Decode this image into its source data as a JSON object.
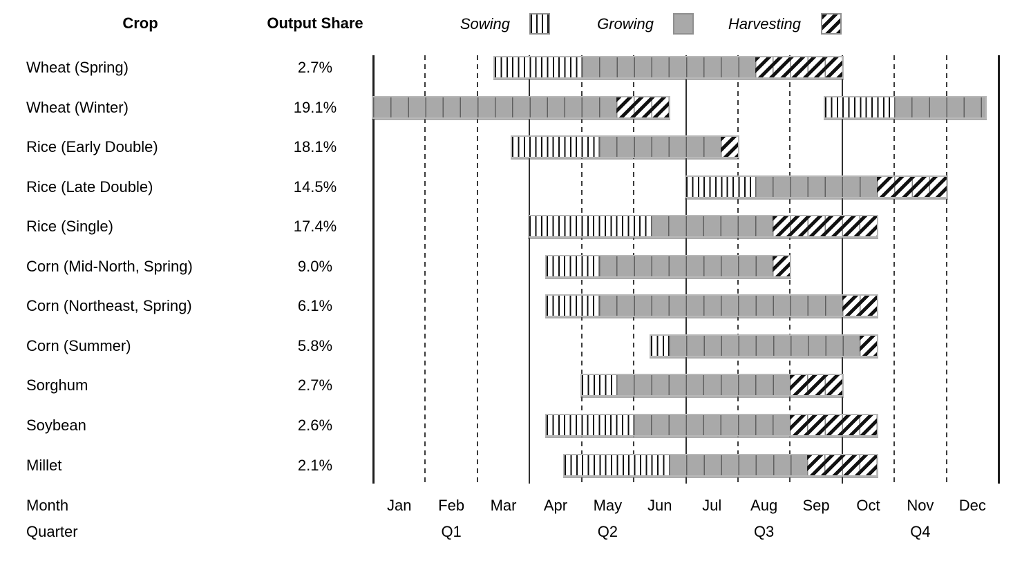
{
  "header": {
    "crop_col": "Crop",
    "share_col": "Output Share"
  },
  "legend": [
    {
      "phase": "sowing",
      "label": "Sowing"
    },
    {
      "phase": "growing",
      "label": "Growing"
    },
    {
      "phase": "harvesting",
      "label": "Harvesting"
    }
  ],
  "axis": {
    "month_title": "Month",
    "quarter_title": "Quarter"
  },
  "colors": {
    "growing_fill": "#a9a9a9",
    "pattern_ink": "#111111",
    "grid_line": "#2f2f2f",
    "bar_border": "#b8b8b8"
  },
  "chart_data": {
    "type": "gantt",
    "time_unit": "month index (0 = start of January, 12 = end of December)",
    "months": [
      "Jan",
      "Feb",
      "Mar",
      "Apr",
      "May",
      "Jun",
      "Jul",
      "Aug",
      "Sep",
      "Oct",
      "Nov",
      "Dec"
    ],
    "quarters": [
      "Q1",
      "Q2",
      "Q3",
      "Q4"
    ],
    "grid": {
      "solid_lines_at_months": [
        0,
        3,
        6,
        9,
        12
      ],
      "dashed_lines_at_months": [
        1,
        2,
        4,
        5,
        7,
        8,
        10,
        11
      ]
    },
    "phases": [
      "sowing",
      "growing",
      "harvesting"
    ],
    "rows": [
      {
        "crop": "Wheat (Spring)",
        "output_share": "2.7%",
        "segments": [
          {
            "phase": "sowing",
            "start": 2.33,
            "end": 4.0
          },
          {
            "phase": "growing",
            "start": 4.0,
            "end": 7.33
          },
          {
            "phase": "harvesting",
            "start": 7.33,
            "end": 9.0
          }
        ]
      },
      {
        "crop": "Wheat (Winter)",
        "output_share": "19.1%",
        "segments": [
          {
            "phase": "growing",
            "start": 0.0,
            "end": 4.67
          },
          {
            "phase": "harvesting",
            "start": 4.67,
            "end": 5.67
          },
          {
            "phase": "sowing",
            "start": 8.67,
            "end": 10.0
          },
          {
            "phase": "growing",
            "start": 10.0,
            "end": 11.75
          }
        ]
      },
      {
        "crop": "Rice (Early Double)",
        "output_share": "18.1%",
        "segments": [
          {
            "phase": "sowing",
            "start": 2.67,
            "end": 4.33
          },
          {
            "phase": "growing",
            "start": 4.33,
            "end": 6.67
          },
          {
            "phase": "harvesting",
            "start": 6.67,
            "end": 7.0
          }
        ]
      },
      {
        "crop": "Rice (Late Double)",
        "output_share": "14.5%",
        "segments": [
          {
            "phase": "sowing",
            "start": 6.0,
            "end": 7.33
          },
          {
            "phase": "growing",
            "start": 7.33,
            "end": 9.67
          },
          {
            "phase": "harvesting",
            "start": 9.67,
            "end": 11.0
          }
        ]
      },
      {
        "crop": "Rice (Single)",
        "output_share": "17.4%",
        "segments": [
          {
            "phase": "sowing",
            "start": 3.0,
            "end": 5.33
          },
          {
            "phase": "growing",
            "start": 5.33,
            "end": 7.67
          },
          {
            "phase": "harvesting",
            "start": 7.67,
            "end": 9.67
          }
        ]
      },
      {
        "crop": "Corn (Mid-North, Spring)",
        "output_share": "9.0%",
        "segments": [
          {
            "phase": "sowing",
            "start": 3.33,
            "end": 4.33
          },
          {
            "phase": "growing",
            "start": 4.33,
            "end": 7.67
          },
          {
            "phase": "harvesting",
            "start": 7.67,
            "end": 8.0
          }
        ]
      },
      {
        "crop": "Corn (Northeast, Spring)",
        "output_share": "6.1%",
        "segments": [
          {
            "phase": "sowing",
            "start": 3.33,
            "end": 4.33
          },
          {
            "phase": "growing",
            "start": 4.33,
            "end": 9.0
          },
          {
            "phase": "harvesting",
            "start": 9.0,
            "end": 9.67
          }
        ]
      },
      {
        "crop": "Corn (Summer)",
        "output_share": "5.8%",
        "segments": [
          {
            "phase": "sowing",
            "start": 5.33,
            "end": 5.67
          },
          {
            "phase": "growing",
            "start": 5.67,
            "end": 9.33
          },
          {
            "phase": "harvesting",
            "start": 9.33,
            "end": 9.67
          }
        ]
      },
      {
        "crop": "Sorghum",
        "output_share": "2.7%",
        "segments": [
          {
            "phase": "sowing",
            "start": 4.0,
            "end": 4.67
          },
          {
            "phase": "growing",
            "start": 4.67,
            "end": 8.0
          },
          {
            "phase": "harvesting",
            "start": 8.0,
            "end": 9.0
          }
        ]
      },
      {
        "crop": "Soybean",
        "output_share": "2.6%",
        "segments": [
          {
            "phase": "sowing",
            "start": 3.33,
            "end": 5.0
          },
          {
            "phase": "growing",
            "start": 5.0,
            "end": 8.0
          },
          {
            "phase": "harvesting",
            "start": 8.0,
            "end": 9.67
          }
        ]
      },
      {
        "crop": "Millet",
        "output_share": "2.1%",
        "segments": [
          {
            "phase": "sowing",
            "start": 3.67,
            "end": 5.67
          },
          {
            "phase": "growing",
            "start": 5.67,
            "end": 8.33
          },
          {
            "phase": "harvesting",
            "start": 8.33,
            "end": 9.67
          }
        ]
      }
    ]
  }
}
